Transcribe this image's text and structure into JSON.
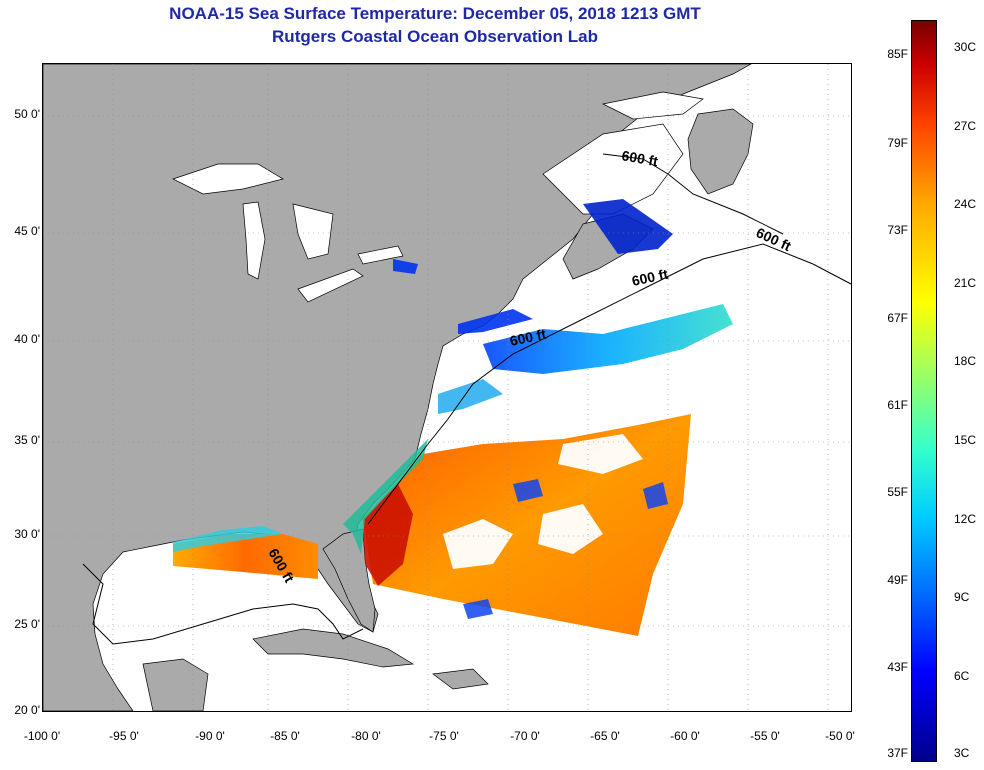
{
  "title": "NOAA-15 Sea Surface Temperature:  December 05, 2018 1213 GMT",
  "subtitle": "Rutgers Coastal Ocean Observation Lab",
  "axes": {
    "lat_labels": [
      "50 0'",
      "45 0'",
      "40 0'",
      "35 0'",
      "30 0'",
      "25 0'",
      "20 0'"
    ],
    "lon_labels": [
      "-100 0'",
      "-95 0'",
      "-90 0'",
      "-85 0'",
      "-80 0'",
      "-75 0'",
      "-70 0'",
      "-65 0'",
      "-60 0'",
      "-55 0'",
      "-50 0'"
    ]
  },
  "contour_labels": [
    "600 ft",
    "600 ft",
    "600 ft",
    "600 ft",
    "600 ft"
  ],
  "colorbar": {
    "fahrenheit_labels": [
      "85F",
      "79F",
      "73F",
      "67F",
      "61F",
      "55F",
      "49F",
      "43F",
      "37F"
    ],
    "celsius_labels": [
      "30C",
      "27C",
      "24C",
      "21C",
      "18C",
      "15C",
      "12C",
      "9C",
      "6C",
      "3C"
    ],
    "colors": [
      "#00008c",
      "#0000ff",
      "#00ccff",
      "#ffff00",
      "#ff4400",
      "#7a0000"
    ]
  },
  "colors": {
    "land": "#aaaaaa",
    "ocean_no_data": "#ffffff",
    "title": "#1f28a8"
  }
}
